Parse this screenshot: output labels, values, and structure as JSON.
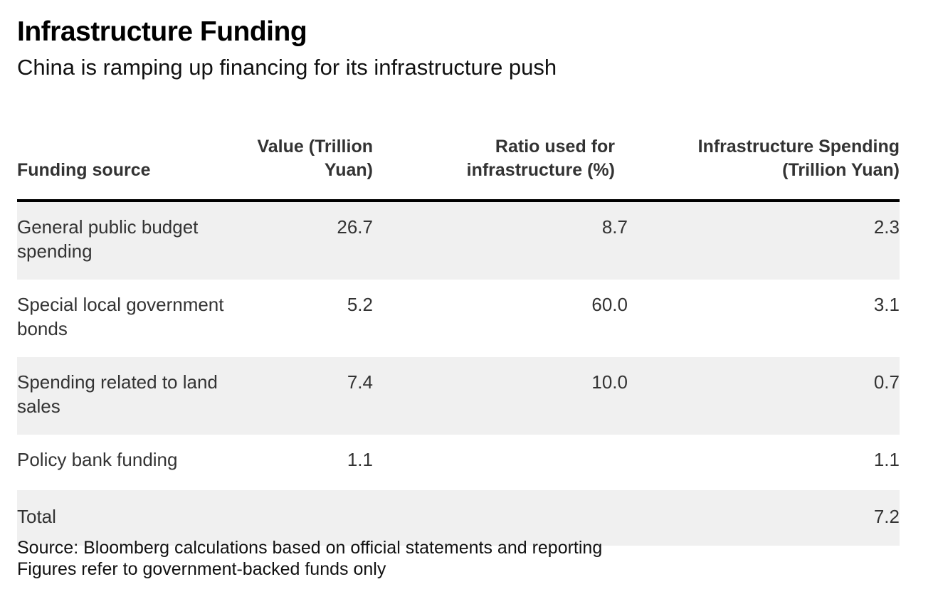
{
  "title": "Infrastructure Funding",
  "subtitle": "China is ramping up financing for its infrastructure push",
  "columns": [
    "Funding source",
    "Value (Trillion\nYuan)",
    "Ratio used for\ninfrastructure   (%)",
    "Infrastructure Spending\n(Trillion Yuan)"
  ],
  "rows": [
    {
      "source": "General public budget spending",
      "value": "26.7",
      "ratio": "8.7",
      "spending": "2.3"
    },
    {
      "source": "Special local government bonds",
      "value": "5.2",
      "ratio": "60.0",
      "spending": "3.1"
    },
    {
      "source": "Spending related to land sales",
      "value": "7.4",
      "ratio": "10.0",
      "spending": "0.7"
    },
    {
      "source": "Policy bank funding",
      "value": "1.1",
      "ratio": "",
      "spending": "1.1"
    },
    {
      "source": "Total",
      "value": "",
      "ratio": "",
      "spending": "7.2"
    }
  ],
  "source_note": "Source: Bloomberg calculations based on official statements and reporting",
  "footnote": "Figures refer to government-backed funds only",
  "colors": {
    "header_rule": "#000000",
    "row_shade": "#f0f0f0",
    "text": "#333333"
  },
  "chart_data": {
    "type": "table",
    "title": "Infrastructure Funding",
    "subtitle": "China is ramping up financing for its infrastructure push",
    "columns": [
      "Funding source",
      "Value (Trillion Yuan)",
      "Ratio used for infrastructure (%)",
      "Infrastructure Spending (Trillion Yuan)"
    ],
    "rows": [
      [
        "General public budget spending",
        26.7,
        8.7,
        2.3
      ],
      [
        "Special local government bonds",
        5.2,
        60.0,
        3.1
      ],
      [
        "Spending related to land sales",
        7.4,
        10.0,
        0.7
      ],
      [
        "Policy bank funding",
        1.1,
        null,
        1.1
      ],
      [
        "Total",
        null,
        null,
        7.2
      ]
    ]
  }
}
